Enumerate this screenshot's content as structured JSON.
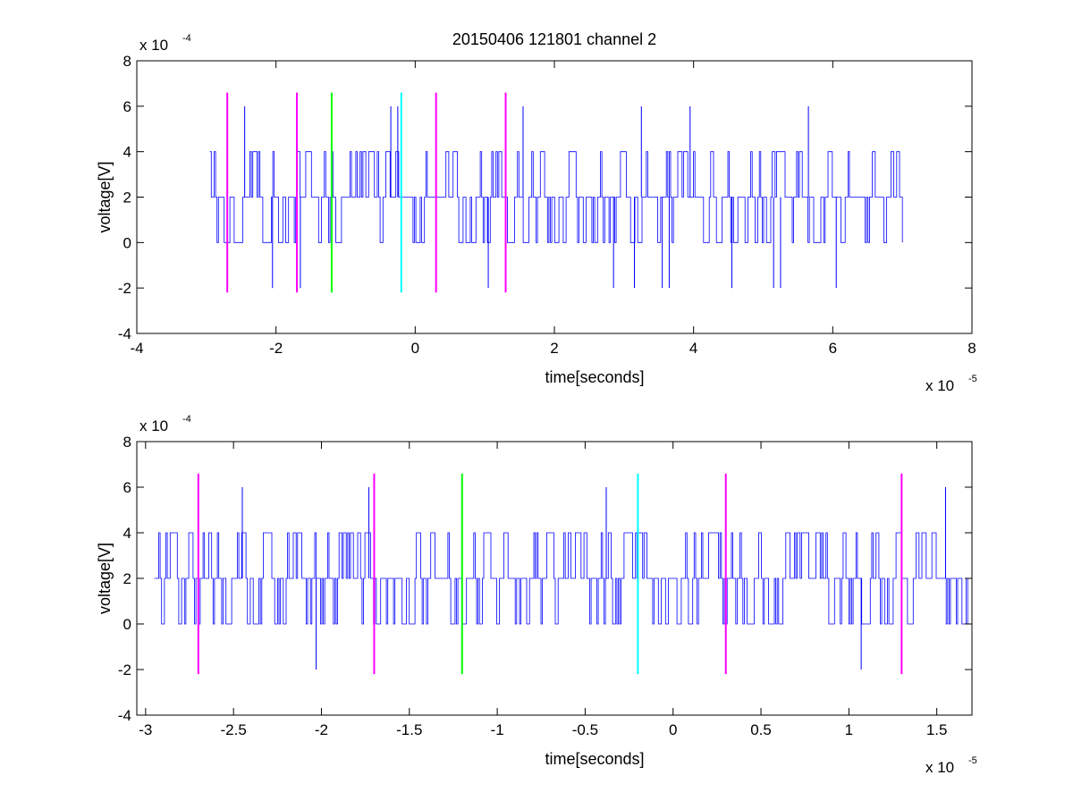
{
  "figure": {
    "title": "20150406 121801 channel 2"
  },
  "chart_data": [
    {
      "type": "line",
      "title": "20150406 121801 channel 2",
      "xlabel": "time[seconds]",
      "ylabel": "voltage[V]",
      "xlim": [
        -4e-05,
        8e-05
      ],
      "ylim": [
        -0.0004,
        0.0008
      ],
      "xticks": [
        -4e-05,
        -2e-05,
        0,
        2e-05,
        4e-05,
        6e-05,
        8e-05
      ],
      "xtick_labels": [
        "-4",
        "-2",
        "0",
        "2",
        "4",
        "6",
        "8"
      ],
      "yticks": [
        -0.0004,
        -0.0002,
        0,
        0.0002,
        0.0004,
        0.0006,
        0.0008
      ],
      "ytick_labels": [
        "-4",
        "-2",
        "0",
        "2",
        "4",
        "6",
        "8"
      ],
      "x_multiplier": {
        "base": "x 10",
        "exp": "-5"
      },
      "y_multiplier": {
        "base": "x 10",
        "exp": "-4"
      },
      "grid": false,
      "signal": {
        "color": "#0000ff",
        "x_start": -2.95e-05,
        "x_end": 7e-05,
        "levels": [
          0,
          0.0002,
          0.0004
        ],
        "spikes": [
          {
            "x": -2.45e-05,
            "y": 0.0006
          },
          {
            "x": -2.05e-05,
            "y": -0.0002
          },
          {
            "x": -1.65e-05,
            "y": -0.0002
          },
          {
            "x": -3.5e-06,
            "y": 0.0006
          },
          {
            "x": -2.5e-06,
            "y": 0.0006
          },
          {
            "x": 1.05e-05,
            "y": -0.0002
          },
          {
            "x": 1.55e-05,
            "y": 0.0006
          },
          {
            "x": 2.85e-05,
            "y": -0.0002
          },
          {
            "x": 3.15e-05,
            "y": -0.0002
          },
          {
            "x": 3.25e-05,
            "y": 0.0006
          },
          {
            "x": 3.55e-05,
            "y": -0.0002
          },
          {
            "x": 3.65e-05,
            "y": -0.0002
          },
          {
            "x": 3.95e-05,
            "y": 0.0006
          },
          {
            "x": 4.55e-05,
            "y": -0.0002
          },
          {
            "x": 5.15e-05,
            "y": -0.0002
          },
          {
            "x": 5.25e-05,
            "y": -0.0002
          },
          {
            "x": 5.65e-05,
            "y": 0.0006
          },
          {
            "x": 6.05e-05,
            "y": -0.0002
          }
        ]
      },
      "markers": [
        {
          "x": -2.7e-05,
          "color": "#ff00ff",
          "y_range": [
            -0.00022,
            0.00066
          ]
        },
        {
          "x": -1.7e-05,
          "color": "#ff00ff",
          "y_range": [
            -0.00022,
            0.00066
          ]
        },
        {
          "x": -1.2e-05,
          "color": "#00ff00",
          "y_range": [
            -0.00022,
            0.00066
          ]
        },
        {
          "x": -2e-06,
          "color": "#00ffff",
          "y_range": [
            -0.00022,
            0.00066
          ]
        },
        {
          "x": 3e-06,
          "color": "#ff00ff",
          "y_range": [
            -0.00022,
            0.00066
          ]
        },
        {
          "x": 1.3e-05,
          "color": "#ff00ff",
          "y_range": [
            -0.00022,
            0.00066
          ]
        }
      ]
    },
    {
      "type": "line",
      "title": "",
      "xlabel": "time[seconds]",
      "ylabel": "voltage[V]",
      "xlim": [
        -3.05e-05,
        1.7e-05
      ],
      "ylim": [
        -0.0004,
        0.0008
      ],
      "xticks": [
        -3e-05,
        -2.5e-05,
        -2e-05,
        -1.5e-05,
        -1e-05,
        -5e-06,
        0,
        5e-06,
        1e-05,
        1.5e-05
      ],
      "xtick_labels": [
        "-3",
        "-2.5",
        "-2",
        "-1.5",
        "-1",
        "-0.5",
        "0",
        "0.5",
        "1",
        "1.5"
      ],
      "yticks": [
        -0.0004,
        -0.0002,
        0,
        0.0002,
        0.0004,
        0.0006,
        0.0008
      ],
      "ytick_labels": [
        "-4",
        "-2",
        "0",
        "2",
        "4",
        "6",
        "8"
      ],
      "x_multiplier": {
        "base": "x 10",
        "exp": "-5"
      },
      "y_multiplier": {
        "base": "x 10",
        "exp": "-4"
      },
      "grid": false,
      "signal": {
        "color": "#0000ff",
        "x_start": -2.95e-05,
        "x_end": 1.7e-05,
        "levels": [
          0,
          0.0002,
          0.0004
        ],
        "spikes": [
          {
            "x": -2.45e-05,
            "y": 0.0006
          },
          {
            "x": -2.03e-05,
            "y": -0.0002
          },
          {
            "x": -1.73e-05,
            "y": 0.0006
          },
          {
            "x": -3.8e-06,
            "y": 0.0006
          },
          {
            "x": 3e-06,
            "y": 0.0005
          },
          {
            "x": 1.07e-05,
            "y": -0.0002
          },
          {
            "x": 1.55e-05,
            "y": 0.0006
          }
        ]
      },
      "markers": [
        {
          "x": -2.7e-05,
          "color": "#ff00ff",
          "y_range": [
            -0.00022,
            0.00066
          ]
        },
        {
          "x": -1.7e-05,
          "color": "#ff00ff",
          "y_range": [
            -0.00022,
            0.00066
          ]
        },
        {
          "x": -1.2e-05,
          "color": "#00ff00",
          "y_range": [
            -0.00022,
            0.00066
          ]
        },
        {
          "x": -2e-06,
          "color": "#00ffff",
          "y_range": [
            -0.00022,
            0.00066
          ]
        },
        {
          "x": 3e-06,
          "color": "#ff00ff",
          "y_range": [
            -0.00022,
            0.00066
          ]
        },
        {
          "x": 1.3e-05,
          "color": "#ff00ff",
          "y_range": [
            -0.00022,
            0.00066
          ]
        }
      ]
    }
  ]
}
